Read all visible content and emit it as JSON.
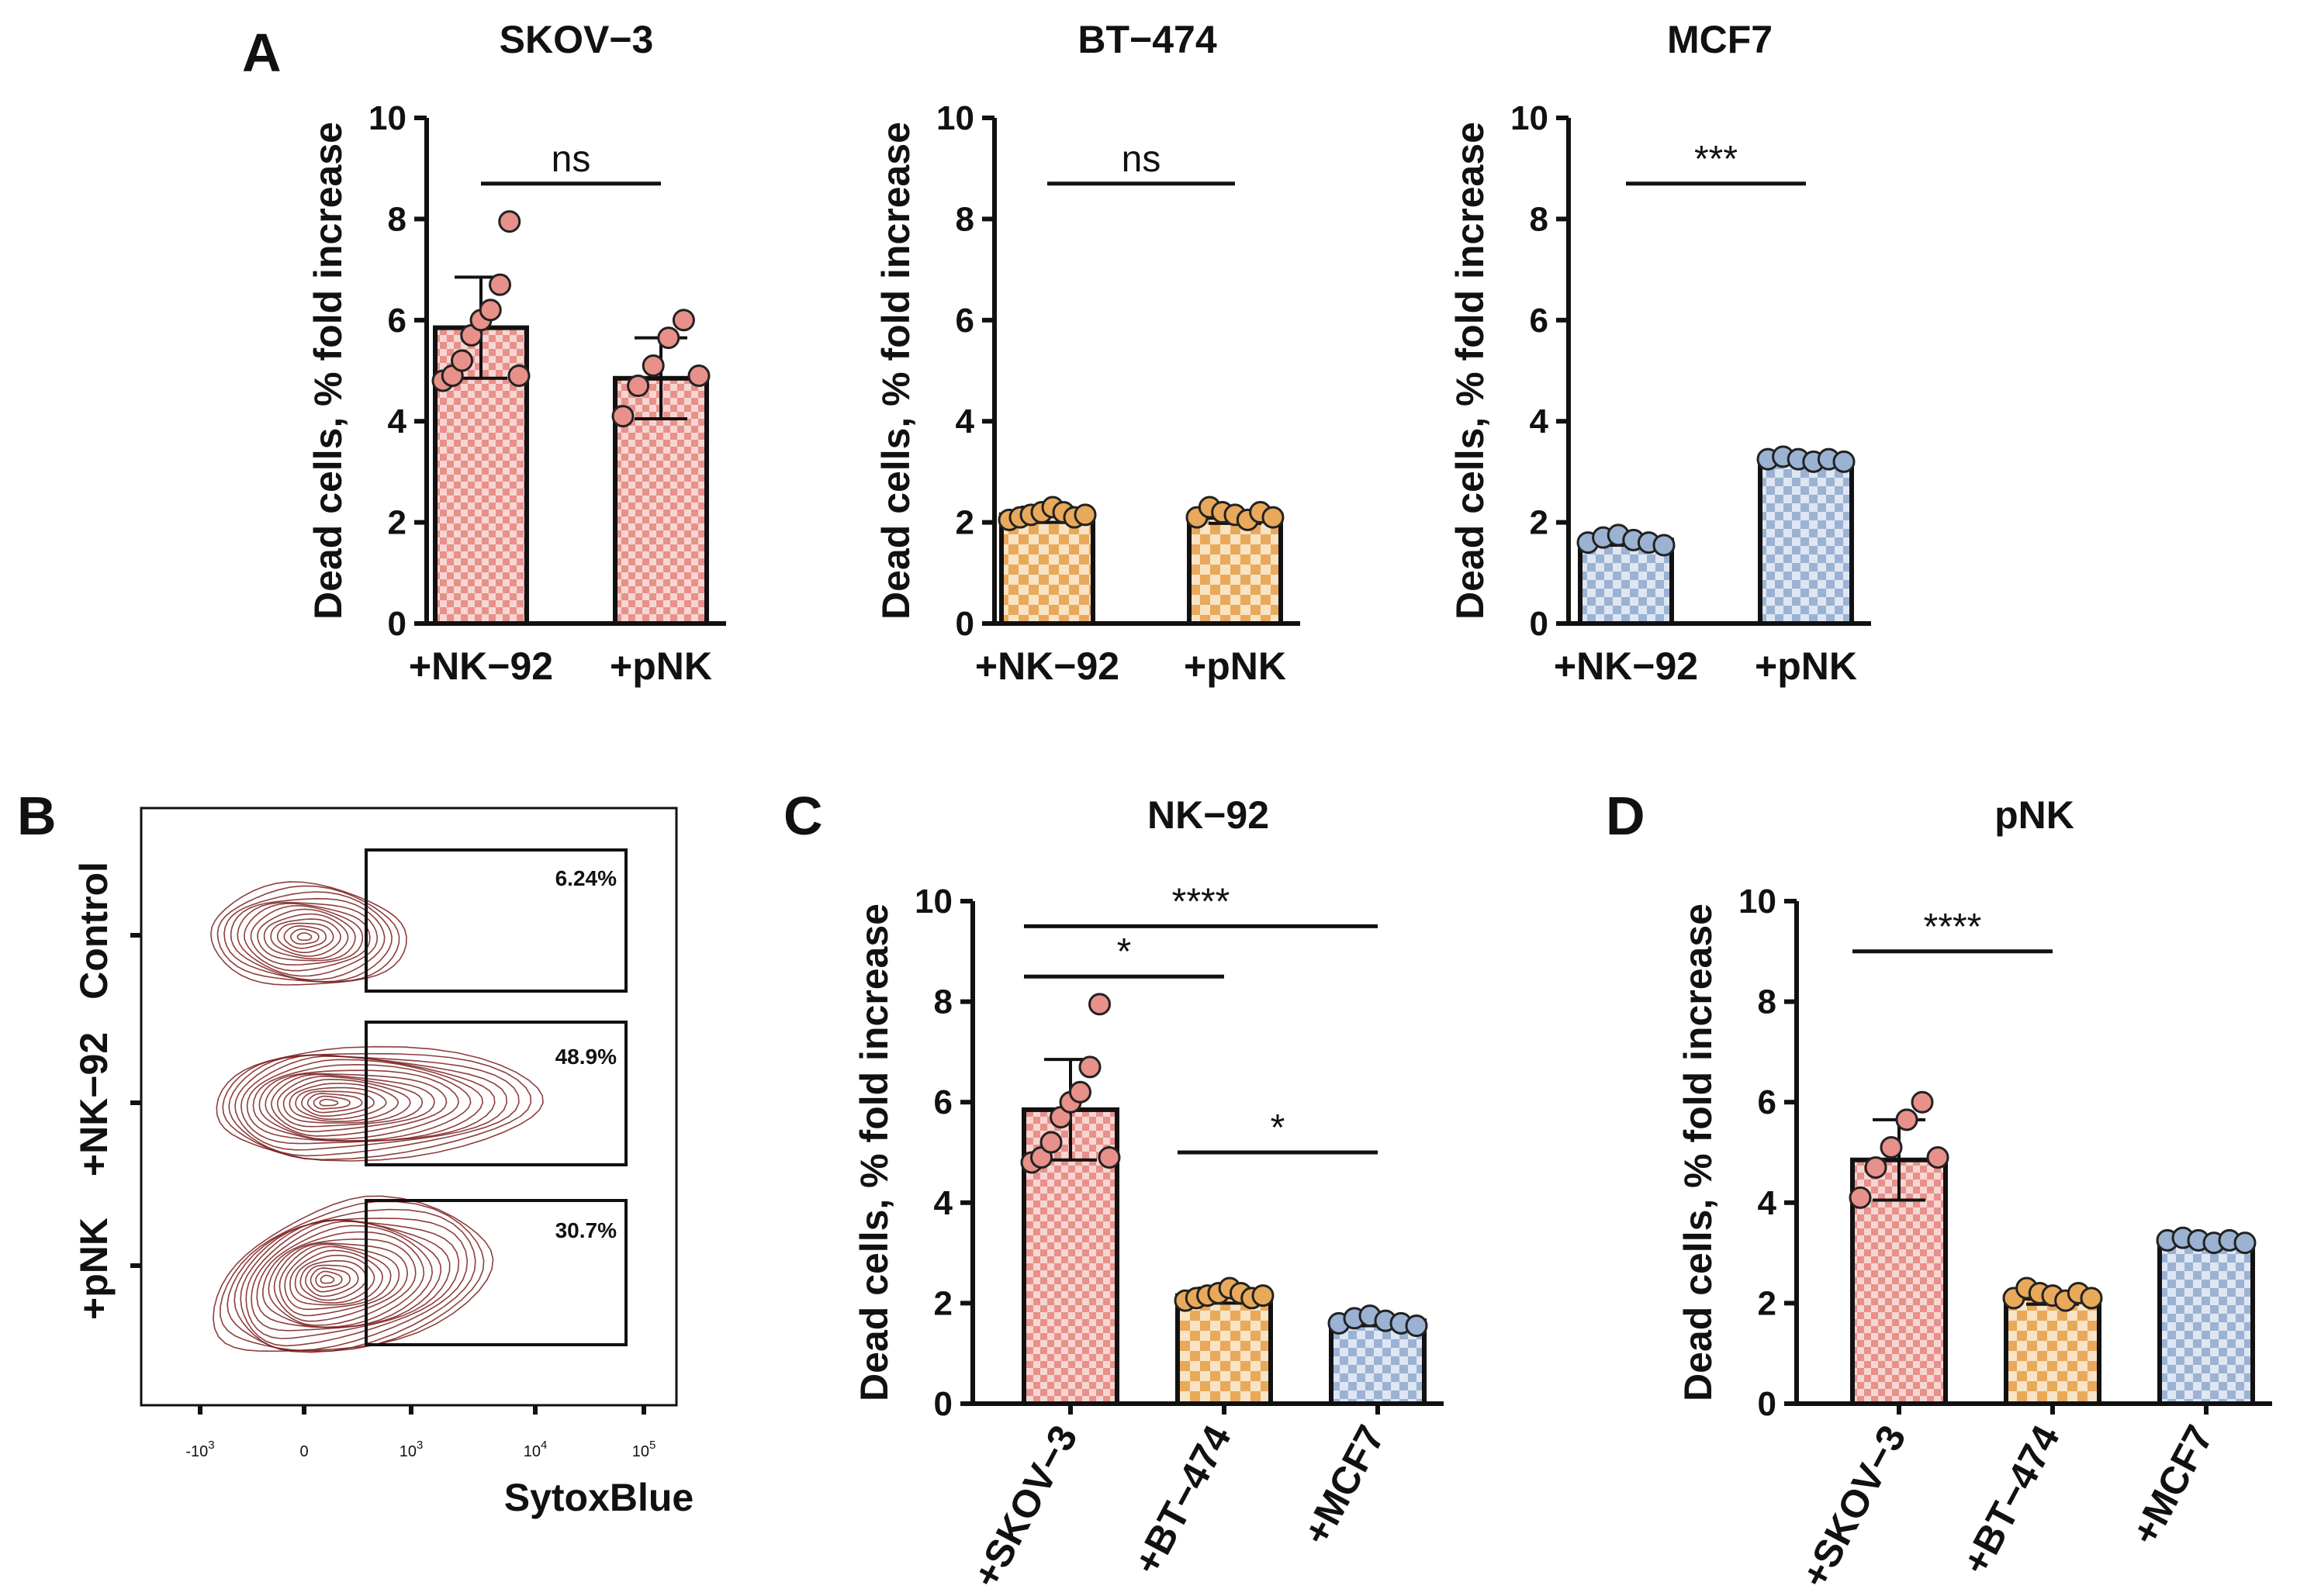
{
  "panel_letters": {
    "A": "A",
    "B": "B",
    "C": "C",
    "D": "D"
  },
  "colors": {
    "salmon": "#e8908a",
    "salmon_light": "#f7d5d2",
    "orange": "#e9a95a",
    "orange_light": "#f8e3c5",
    "blue": "#9bb2d3",
    "blue_light": "#dde6f2",
    "axis": "#111111",
    "contour": "#7a1c1c"
  },
  "chart_data": [
    {
      "id": "A1",
      "type": "bar",
      "title": "SKOV−3",
      "ylabel": "Dead cells, % fold increase",
      "ylim": [
        0,
        10
      ],
      "yticks": [
        "0",
        "2",
        "4",
        "6",
        "8",
        "10"
      ],
      "categories": [
        "+NK−92",
        "+pNK"
      ],
      "values": [
        5.85,
        4.85
      ],
      "errors": [
        1.0,
        0.8
      ],
      "colors": [
        "salmon",
        "salmon"
      ],
      "points": [
        [
          4.8,
          4.9,
          5.2,
          5.7,
          6.0,
          6.2,
          6.7,
          7.95,
          4.9
        ],
        [
          4.1,
          4.7,
          5.1,
          5.65,
          6.0,
          4.9
        ]
      ],
      "significance": [
        {
          "from": 0,
          "to": 1,
          "label": "ns",
          "y": 8.7
        }
      ]
    },
    {
      "id": "A2",
      "type": "bar",
      "title": "BT−474",
      "ylabel": "Dead cells, % fold increase",
      "ylim": [
        0,
        10
      ],
      "yticks": [
        "0",
        "2",
        "4",
        "6",
        "8",
        "10"
      ],
      "categories": [
        "+NK−92",
        "+pNK"
      ],
      "values": [
        2.15,
        2.1
      ],
      "errors": [
        0.15,
        0.12
      ],
      "colors": [
        "orange",
        "orange"
      ],
      "points": [
        [
          2.05,
          2.1,
          2.15,
          2.2,
          2.3,
          2.2,
          2.1,
          2.15
        ],
        [
          2.1,
          2.3,
          2.2,
          2.15,
          2.05,
          2.2,
          2.1
        ]
      ],
      "significance": [
        {
          "from": 0,
          "to": 1,
          "label": "ns",
          "y": 8.7
        }
      ]
    },
    {
      "id": "A3",
      "type": "bar",
      "title": "MCF7",
      "ylabel": "Dead cells, % fold increase",
      "ylim": [
        0,
        10
      ],
      "yticks": [
        "0",
        "2",
        "4",
        "6",
        "8",
        "10"
      ],
      "categories": [
        "+NK−92",
        "+pNK"
      ],
      "values": [
        1.65,
        3.25
      ],
      "errors": [
        0.1,
        0.07
      ],
      "colors": [
        "blue",
        "blue"
      ],
      "points": [
        [
          1.6,
          1.7,
          1.75,
          1.65,
          1.6,
          1.55
        ],
        [
          3.25,
          3.3,
          3.25,
          3.2,
          3.25,
          3.2
        ]
      ],
      "significance": [
        {
          "from": 0,
          "to": 1,
          "label": "***",
          "y": 8.7
        }
      ]
    },
    {
      "id": "C",
      "type": "bar",
      "title": "NK−92",
      "ylabel": "Dead cells, % fold increase",
      "ylim": [
        0,
        10
      ],
      "yticks": [
        "0",
        "2",
        "4",
        "6",
        "8",
        "10"
      ],
      "categories": [
        "+SKOV−3",
        "+BT−474",
        "+MCF7"
      ],
      "rotated_labels": true,
      "values": [
        5.85,
        2.15,
        1.65
      ],
      "errors": [
        1.0,
        0.15,
        0.1
      ],
      "colors": [
        "salmon",
        "orange",
        "blue"
      ],
      "points": [
        [
          4.8,
          4.9,
          5.2,
          5.7,
          6.0,
          6.2,
          6.7,
          7.95,
          4.9
        ],
        [
          2.05,
          2.1,
          2.15,
          2.2,
          2.3,
          2.2,
          2.1,
          2.15
        ],
        [
          1.6,
          1.7,
          1.75,
          1.65,
          1.6,
          1.55
        ]
      ],
      "significance": [
        {
          "from": 0,
          "to": 2,
          "label": "****",
          "y": 9.5
        },
        {
          "from": 0,
          "to": 1,
          "label": "*",
          "y": 8.5
        },
        {
          "from": 1,
          "to": 2,
          "label": "*",
          "y": 5.0
        }
      ]
    },
    {
      "id": "D",
      "type": "bar",
      "title": "pNK",
      "ylabel": "Dead cells, % fold increase",
      "ylim": [
        0,
        10
      ],
      "yticks": [
        "0",
        "2",
        "4",
        "6",
        "8",
        "10"
      ],
      "categories": [
        "+SKOV−3",
        "+BT−474",
        "+MCF7"
      ],
      "rotated_labels": true,
      "values": [
        4.85,
        2.1,
        3.25
      ],
      "errors": [
        0.8,
        0.12,
        0.07
      ],
      "colors": [
        "salmon",
        "orange",
        "blue"
      ],
      "points": [
        [
          4.1,
          4.7,
          5.1,
          5.65,
          6.0,
          4.9
        ],
        [
          2.1,
          2.3,
          2.2,
          2.15,
          2.05,
          2.2,
          2.1
        ],
        [
          3.25,
          3.3,
          3.25,
          3.2,
          3.25,
          3.2
        ]
      ],
      "significance": [
        {
          "from": 0,
          "to": 1,
          "label": "****",
          "y": 9.0
        }
      ]
    }
  ],
  "flow": {
    "xlabel": "SytoxBlue",
    "xticks": [
      {
        "base": "-10",
        "exp": "3"
      },
      {
        "base": "0",
        "exp": ""
      },
      {
        "base": "10",
        "exp": "3"
      },
      {
        "base": "10",
        "exp": "4"
      },
      {
        "base": "10",
        "exp": "5"
      }
    ],
    "rows": [
      {
        "label": "Control",
        "gate_percent": "6.24%"
      },
      {
        "label": "+NK−92",
        "gate_percent": "48.9%"
      },
      {
        "label": "+pNK",
        "gate_percent": "30.7%"
      }
    ]
  }
}
